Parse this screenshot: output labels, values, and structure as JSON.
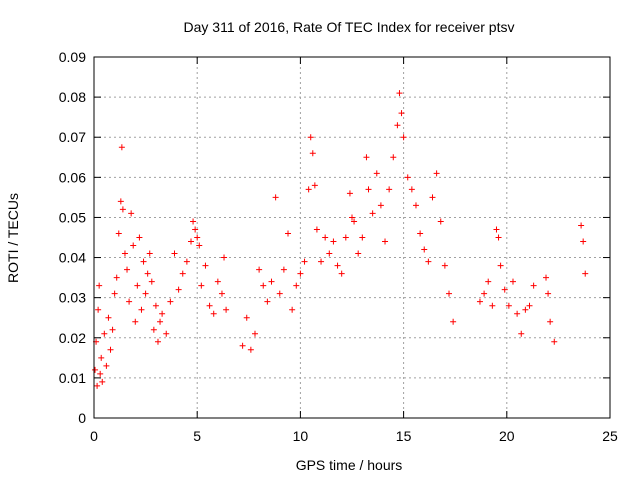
{
  "chart_data": {
    "type": "scatter",
    "title": "Day 311 of 2016, Rate Of TEC Index for receiver ptsv",
    "xlabel": "GPS time / hours",
    "ylabel": "ROTI / TECUs",
    "xlim": [
      0,
      25
    ],
    "ylim": [
      0,
      0.09
    ],
    "xticks": [
      0,
      5,
      10,
      15,
      20,
      25
    ],
    "yticks": [
      0,
      0.01,
      0.02,
      0.03,
      0.04,
      0.05,
      0.06,
      0.07,
      0.08,
      0.09
    ],
    "xtick_labels": [
      "0",
      "5",
      "10",
      "15",
      "20",
      "25"
    ],
    "ytick_labels": [
      "0",
      "0.01",
      "0.02",
      "0.03",
      "0.04",
      "0.05",
      "0.06",
      "0.07",
      "0.08",
      "0.09"
    ],
    "grid": true,
    "marker": "+",
    "color": "#ff0000",
    "series": [
      {
        "x": [
          0.05,
          0.1,
          0.15,
          0.2,
          0.25,
          0.3,
          0.35,
          0.4,
          0.5,
          0.6,
          0.7,
          0.8,
          0.9,
          1.0,
          1.1,
          1.2,
          1.3,
          1.35,
          1.4,
          1.5,
          1.6,
          1.7,
          1.8,
          1.9,
          2.0,
          2.1,
          2.2,
          2.3,
          2.4,
          2.5,
          2.6,
          2.7,
          2.8,
          2.9,
          3.0,
          3.1,
          3.2,
          3.3,
          3.5,
          3.7,
          3.9,
          4.1,
          4.3,
          4.5,
          4.7,
          4.8,
          4.9,
          5.0,
          5.1,
          5.2,
          5.4,
          5.6,
          5.8,
          6.0,
          6.2,
          6.3,
          6.4,
          7.2,
          7.4,
          7.6,
          7.8,
          8.0,
          8.2,
          8.4,
          8.6,
          8.8,
          9.0,
          9.2,
          9.4,
          9.6,
          9.8,
          10.0,
          10.2,
          10.4,
          10.5,
          10.6,
          10.7,
          10.8,
          11.0,
          11.2,
          11.4,
          11.6,
          11.8,
          12.0,
          12.2,
          12.4,
          12.5,
          12.6,
          12.8,
          13.0,
          13.2,
          13.3,
          13.5,
          13.7,
          13.9,
          14.1,
          14.3,
          14.5,
          14.7,
          14.8,
          14.9,
          15.0,
          15.2,
          15.4,
          15.6,
          15.8,
          16.0,
          16.2,
          16.4,
          16.6,
          16.8,
          17.0,
          17.2,
          17.4,
          18.7,
          18.9,
          19.1,
          19.3,
          19.5,
          19.6,
          19.7,
          19.9,
          20.1,
          20.3,
          20.5,
          20.7,
          20.9,
          21.1,
          21.3,
          21.9,
          22.0,
          22.1,
          22.3,
          23.6,
          23.7,
          23.8
        ],
        "y": [
          0.012,
          0.019,
          0.008,
          0.027,
          0.033,
          0.011,
          0.015,
          0.009,
          0.021,
          0.013,
          0.025,
          0.017,
          0.022,
          0.031,
          0.035,
          0.046,
          0.054,
          0.0675,
          0.052,
          0.041,
          0.037,
          0.029,
          0.051,
          0.043,
          0.024,
          0.033,
          0.045,
          0.027,
          0.039,
          0.031,
          0.036,
          0.041,
          0.034,
          0.022,
          0.028,
          0.019,
          0.024,
          0.026,
          0.021,
          0.029,
          0.041,
          0.032,
          0.036,
          0.039,
          0.044,
          0.049,
          0.047,
          0.045,
          0.043,
          0.033,
          0.038,
          0.028,
          0.026,
          0.034,
          0.031,
          0.04,
          0.027,
          0.018,
          0.025,
          0.017,
          0.021,
          0.037,
          0.033,
          0.029,
          0.034,
          0.055,
          0.031,
          0.037,
          0.046,
          0.027,
          0.033,
          0.036,
          0.039,
          0.057,
          0.07,
          0.066,
          0.058,
          0.047,
          0.039,
          0.045,
          0.041,
          0.044,
          0.038,
          0.036,
          0.045,
          0.056,
          0.05,
          0.049,
          0.041,
          0.045,
          0.065,
          0.057,
          0.051,
          0.061,
          0.053,
          0.044,
          0.057,
          0.065,
          0.073,
          0.081,
          0.076,
          0.07,
          0.06,
          0.057,
          0.053,
          0.046,
          0.042,
          0.039,
          0.055,
          0.061,
          0.049,
          0.038,
          0.031,
          0.024,
          0.029,
          0.031,
          0.034,
          0.028,
          0.047,
          0.045,
          0.038,
          0.032,
          0.028,
          0.034,
          0.026,
          0.021,
          0.027,
          0.028,
          0.033,
          0.035,
          0.031,
          0.024,
          0.019,
          0.048,
          0.044,
          0.036
        ]
      }
    ]
  }
}
